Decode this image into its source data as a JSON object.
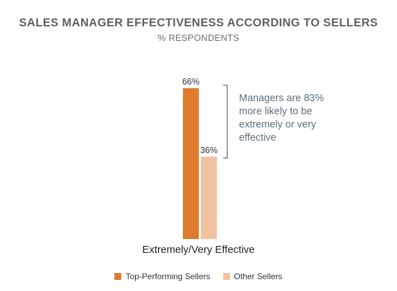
{
  "chart_data": {
    "type": "bar",
    "title": "SALES MANAGER EFFECTIVENESS ACCORDING TO SELLERS",
    "subtitle": "% RESPONDENTS",
    "categories": [
      "Extremely/Very Effective"
    ],
    "series": [
      {
        "name": "Top-Performing Sellers",
        "values": [
          66
        ],
        "labels": [
          "66%"
        ],
        "color": "#e07b2e"
      },
      {
        "name": "Other Sellers",
        "values": [
          36
        ],
        "labels": [
          "36%"
        ],
        "color": "#f2c29e"
      }
    ],
    "ylim": [
      0,
      100
    ],
    "annotation": "Managers are 83% more likely to be extremely or very effective",
    "grid": false,
    "legend_position": "bottom"
  }
}
